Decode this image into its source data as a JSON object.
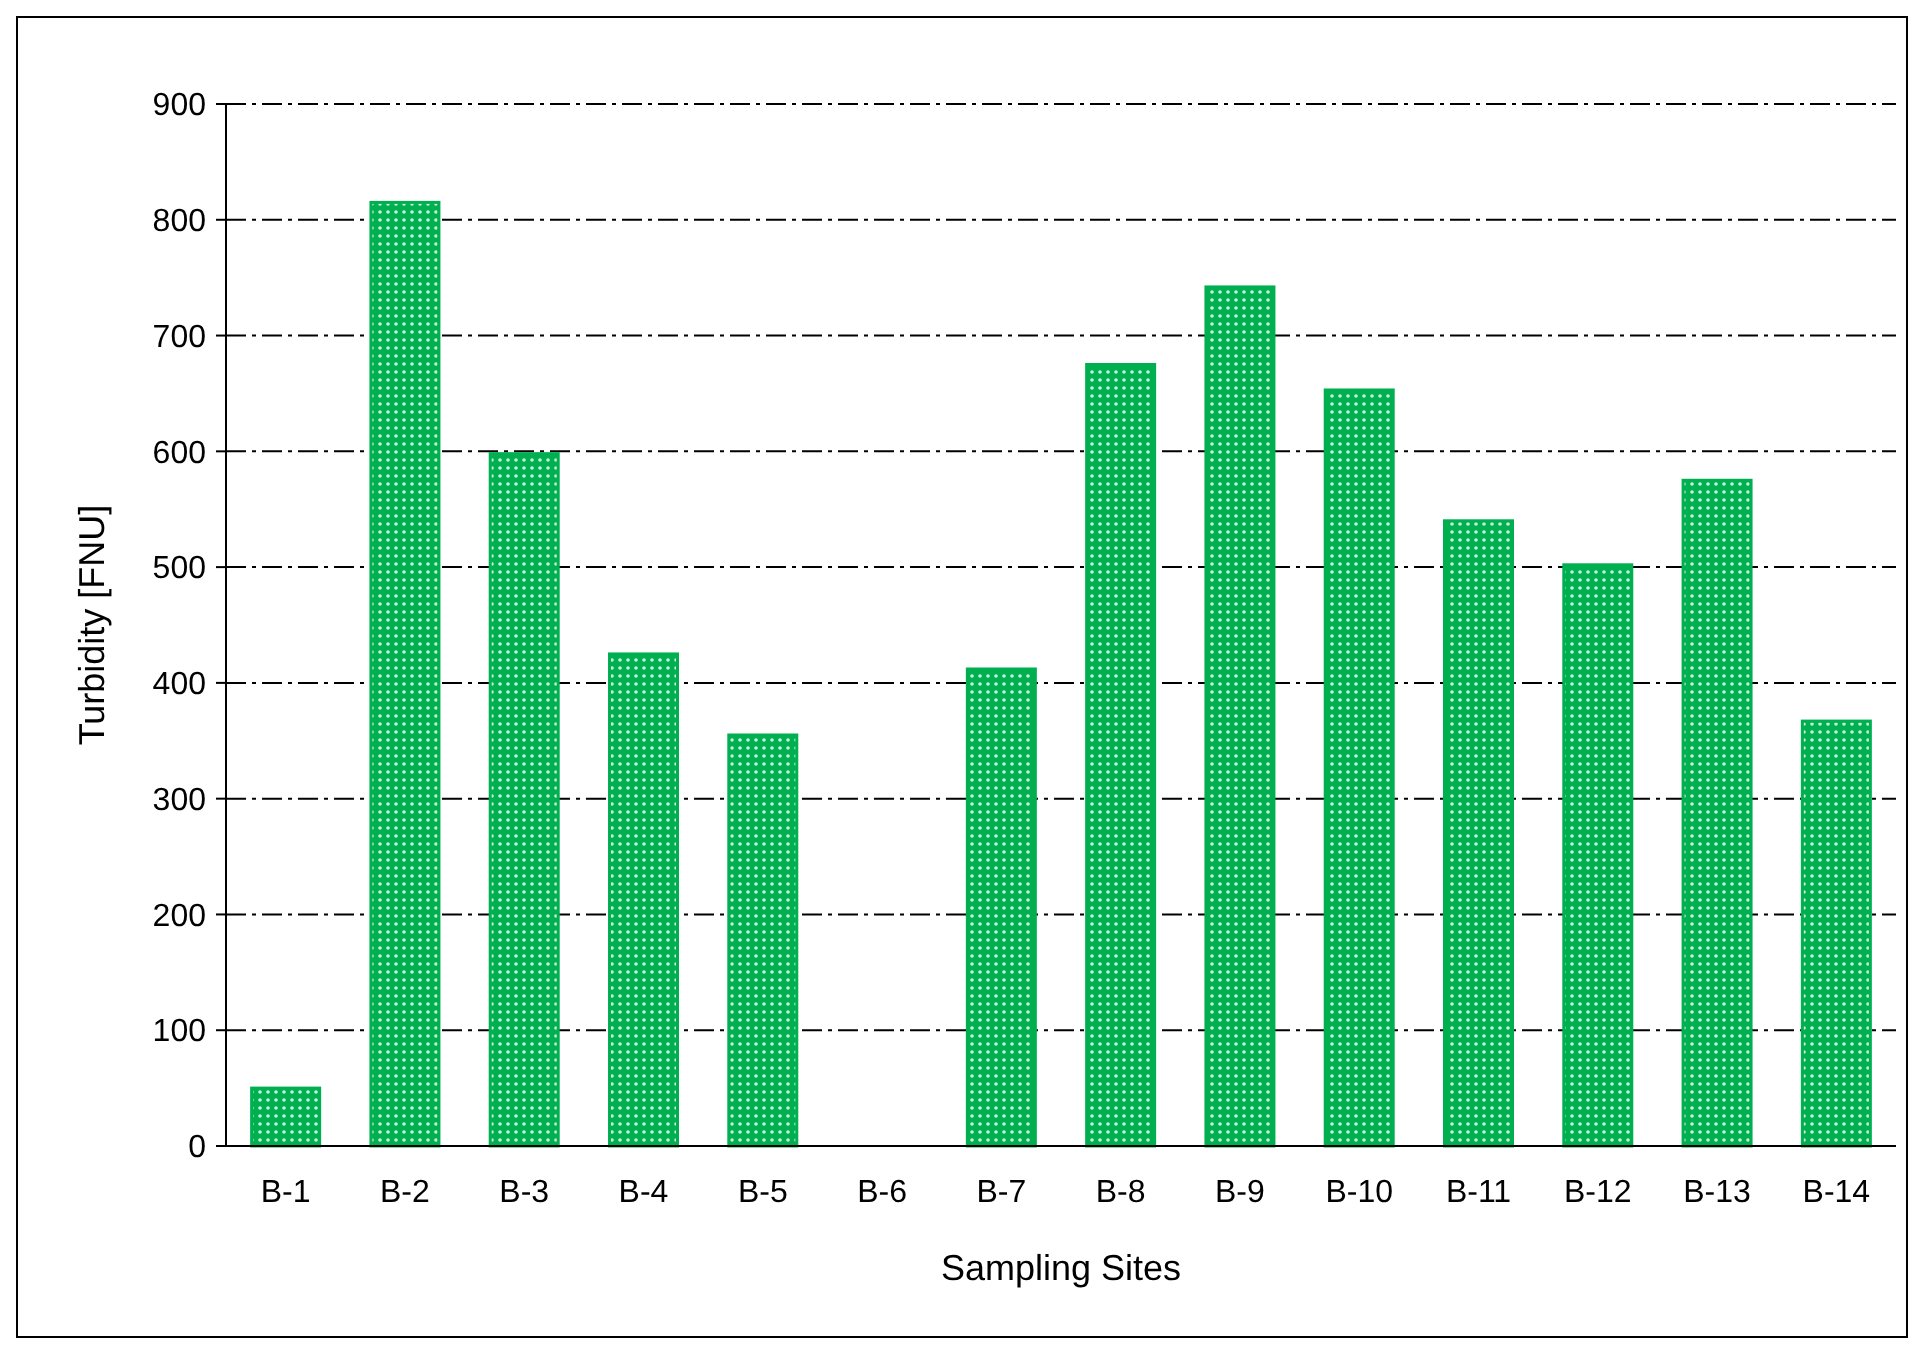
{
  "chart_data": {
    "type": "bar",
    "xlabel": "Sampling Sites",
    "ylabel": "Turbidity [FNU]",
    "categories": [
      "B-1",
      "B-2",
      "B-3",
      "B-4",
      "B-5",
      "B-6",
      "B-7",
      "B-8",
      "B-9",
      "B-10",
      "B-11",
      "B-12",
      "B-13",
      "B-14"
    ],
    "values": [
      50,
      815,
      598,
      425,
      355,
      0,
      412,
      675,
      742,
      653,
      540,
      502,
      575,
      367
    ],
    "color": "#00b050",
    "ylim": [
      0,
      900
    ],
    "yticks": [
      0,
      100,
      200,
      300,
      400,
      500,
      600,
      700,
      800,
      900
    ],
    "grid": "y"
  }
}
